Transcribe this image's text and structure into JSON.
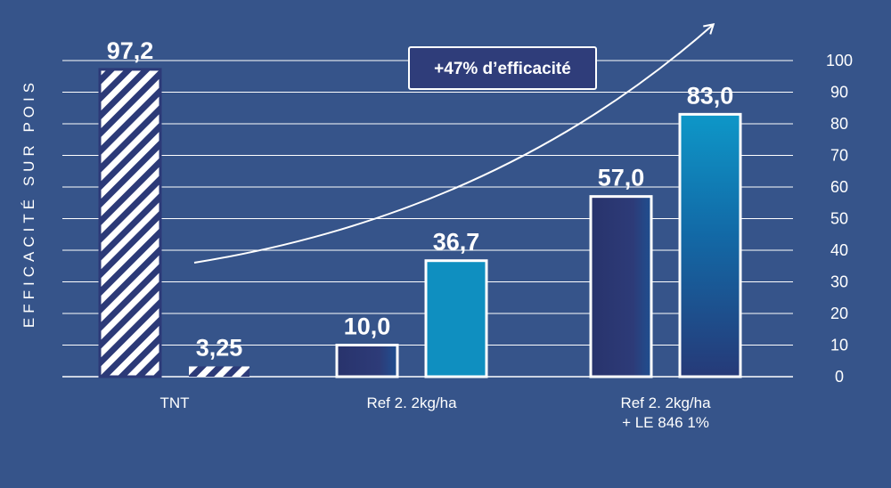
{
  "chart_data": {
    "type": "bar",
    "ylabel": "EFFICACITÉ SUR POIS",
    "ylim": [
      0,
      100
    ],
    "yticks": [
      0,
      10,
      20,
      30,
      40,
      50,
      60,
      70,
      80,
      90,
      100
    ],
    "grid": true,
    "categories": [
      "TNT",
      "Ref 2. 2kg/ha",
      "Ref 2. 2kg/ha + LE 846 1%"
    ],
    "category_labels": [
      [
        "TNT"
      ],
      [
        "Ref 2. 2kg/ha"
      ],
      [
        "Ref 2. 2kg/ha",
        "+ LE 846 1%"
      ]
    ],
    "series": [
      {
        "values": [
          97.2,
          10.0,
          57.0
        ],
        "labels": [
          "97,2",
          "10,0",
          "57,0"
        ]
      },
      {
        "values": [
          3.25,
          36.7,
          83.0
        ],
        "labels": [
          "3,25",
          "36,7",
          "83,0"
        ]
      }
    ],
    "annotation": "+47% d’efficacité",
    "colors": {
      "background": "#36548a",
      "dark_bar": "#2b3872",
      "light_bar": "#0f8fc0",
      "hatch_stripe": "#2c3a78",
      "grid": "#ffffff"
    }
  }
}
